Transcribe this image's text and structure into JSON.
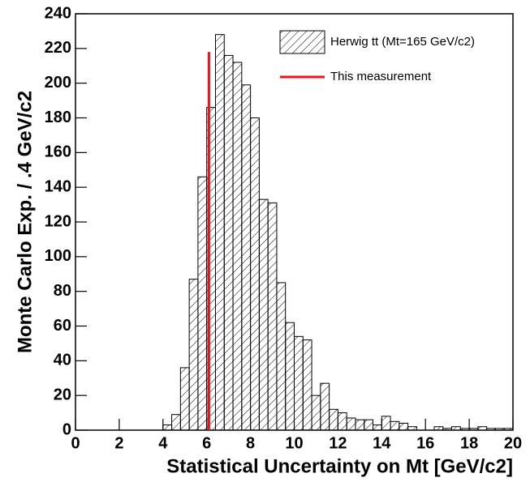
{
  "chart_data": {
    "type": "histogram",
    "x_label": "Statistical Uncertainty on Mt [GeV/c2]",
    "y_label": "Monte Carlo Exp. / .4 GeV/c2",
    "bins": [
      0,
      0.4,
      0.8,
      1.2,
      1.6,
      2.0,
      2.4,
      2.8,
      3.2,
      3.6,
      4.0,
      4.4,
      4.8,
      5.2,
      5.6,
      6.0,
      6.4,
      6.8,
      7.2,
      7.6,
      8.0,
      8.4,
      8.8,
      9.2,
      9.6,
      10.0,
      10.4,
      10.8,
      11.2,
      11.6,
      12.0,
      12.4,
      12.8,
      13.2,
      13.6,
      14.0,
      14.4,
      14.8,
      15.2,
      15.6,
      16.0,
      16.4,
      16.8,
      17.2,
      17.6,
      18.0,
      18.4,
      18.8,
      19.2,
      19.6,
      20.0
    ],
    "series": [
      {
        "name": "Herwig tt (Mt=165 GeV/c2)",
        "color": "#000000",
        "values": [
          0,
          0,
          0,
          0,
          0,
          0,
          0,
          0,
          0,
          0,
          3,
          9,
          36,
          87,
          146,
          186,
          228,
          216,
          212,
          199,
          180,
          133,
          131,
          85,
          62,
          54,
          52,
          20,
          27,
          12,
          10,
          7,
          6,
          6,
          3,
          8,
          5,
          4,
          2,
          0,
          0,
          2,
          1,
          2,
          1,
          1,
          2,
          1,
          1,
          1
        ]
      }
    ],
    "measurement": {
      "name": "This measurement",
      "color": "#e8141c",
      "x": 6.1,
      "height": 218
    },
    "xlim": [
      0,
      20
    ],
    "xticks": [
      0,
      2,
      4,
      6,
      8,
      10,
      12,
      14,
      16,
      18,
      20
    ],
    "ylim": [
      0,
      240
    ],
    "yticks": [
      0,
      20,
      40,
      60,
      80,
      100,
      120,
      140,
      160,
      180,
      200,
      220,
      240
    ]
  }
}
